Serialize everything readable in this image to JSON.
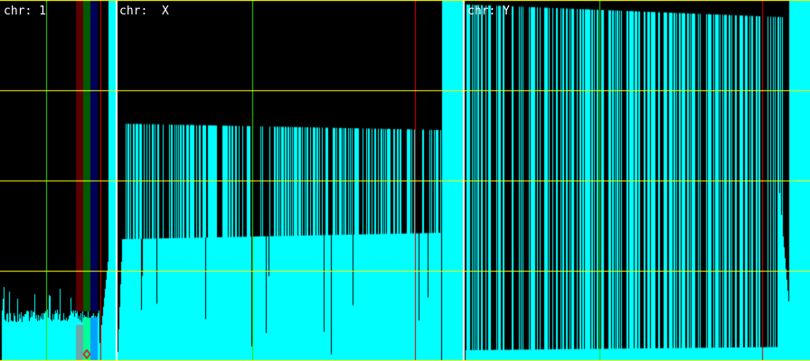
{
  "panels": [
    {
      "label": "chr: 1"
    },
    {
      "label": "chr:  X"
    },
    {
      "label": "chr: Y"
    }
  ],
  "colors": {
    "background": "#000000",
    "coverage": "#00ffff",
    "gridline_horizontal": "#ffff00",
    "separator": "#ffffff",
    "marker_green": "#33dd00",
    "marker_red": "#dd0000",
    "highlight_red": "#5a0000",
    "highlight_green": "#005a00",
    "highlight_blue": "#00005a",
    "selection_marker": "#ff0000"
  },
  "icons": {
    "selection_marker": "diamond-icon"
  }
}
